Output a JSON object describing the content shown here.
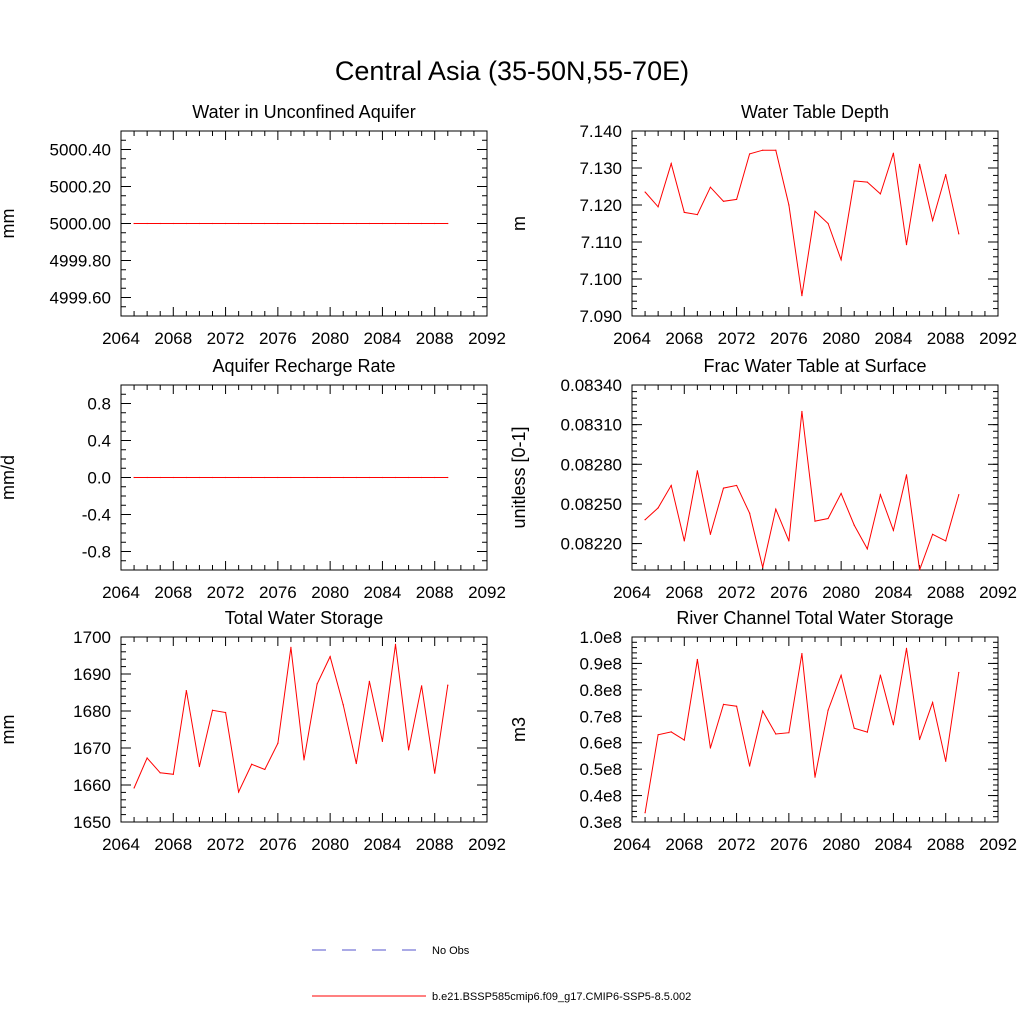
{
  "title": "Central Asia (35-50N,55-70E)",
  "chart_data": [
    {
      "type": "line",
      "title": "Water in Unconfined Aquifer",
      "ylabel": "mm",
      "xlim": [
        2064,
        2092
      ],
      "ylim": [
        4999.5,
        5000.5
      ],
      "x_ticks": [
        "2064",
        "2068",
        "2072",
        "2076",
        "2080",
        "2084",
        "2088",
        "2092"
      ],
      "y_ticks": [
        {
          "v": 4999.6,
          "label": "4999.60"
        },
        {
          "v": 4999.8,
          "label": "4999.80"
        },
        {
          "v": 5000.0,
          "label": "5000.00"
        },
        {
          "v": 5000.2,
          "label": "5000.20"
        },
        {
          "v": 5000.4,
          "label": "5000.40"
        }
      ],
      "y_minor_step": 0.05,
      "x": [
        2065,
        2066,
        2067,
        2068,
        2069,
        2070,
        2071,
        2072,
        2073,
        2074,
        2075,
        2076,
        2077,
        2078,
        2079,
        2080,
        2081,
        2082,
        2083,
        2084,
        2085,
        2086,
        2087,
        2088,
        2089
      ],
      "series": [
        {
          "color": "#ff0000",
          "values": [
            5000,
            5000,
            5000,
            5000,
            5000,
            5000,
            5000,
            5000,
            5000,
            5000,
            5000,
            5000,
            5000,
            5000,
            5000,
            5000,
            5000,
            5000,
            5000,
            5000,
            5000,
            5000,
            5000,
            5000,
            5000
          ]
        }
      ]
    },
    {
      "type": "line",
      "title": "Water Table Depth",
      "ylabel": "m",
      "xlim": [
        2064,
        2092
      ],
      "ylim": [
        7.09,
        7.14
      ],
      "x_ticks": [
        "2064",
        "2068",
        "2072",
        "2076",
        "2080",
        "2084",
        "2088",
        "2092"
      ],
      "y_ticks": [
        {
          "v": 7.09,
          "label": "7.090"
        },
        {
          "v": 7.1,
          "label": "7.100"
        },
        {
          "v": 7.11,
          "label": "7.110"
        },
        {
          "v": 7.12,
          "label": "7.120"
        },
        {
          "v": 7.13,
          "label": "7.130"
        },
        {
          "v": 7.14,
          "label": "7.140"
        }
      ],
      "y_minor_step": 0.002,
      "x": [
        2065,
        2066,
        2067,
        2068,
        2069,
        2070,
        2071,
        2072,
        2073,
        2074,
        2075,
        2076,
        2077,
        2078,
        2079,
        2080,
        2081,
        2082,
        2083,
        2084,
        2085,
        2086,
        2087,
        2088,
        2089
      ],
      "series": [
        {
          "color": "#ff0000",
          "values": [
            7.1235,
            7.1195,
            7.1312,
            7.118,
            7.1174,
            7.1248,
            7.121,
            7.1215,
            7.1338,
            7.1348,
            7.1348,
            7.12,
            7.0955,
            7.1183,
            7.115,
            7.1052,
            7.1265,
            7.1262,
            7.123,
            7.134,
            7.1093,
            7.131,
            7.1158,
            7.1282,
            7.1122
          ]
        }
      ]
    },
    {
      "type": "line",
      "title": "Aquifer Recharge Rate",
      "ylabel": "mm/d",
      "xlim": [
        2064,
        2092
      ],
      "ylim": [
        -1.0,
        1.0
      ],
      "x_ticks": [
        "2064",
        "2068",
        "2072",
        "2076",
        "2080",
        "2084",
        "2088",
        "2092"
      ],
      "y_ticks": [
        {
          "v": -0.8,
          "label": "-0.8"
        },
        {
          "v": -0.4,
          "label": "-0.4"
        },
        {
          "v": 0.0,
          "label": "0.0"
        },
        {
          "v": 0.4,
          "label": "0.4"
        },
        {
          "v": 0.8,
          "label": "0.8"
        }
      ],
      "y_minor_step": 0.1,
      "x": [
        2065,
        2066,
        2067,
        2068,
        2069,
        2070,
        2071,
        2072,
        2073,
        2074,
        2075,
        2076,
        2077,
        2078,
        2079,
        2080,
        2081,
        2082,
        2083,
        2084,
        2085,
        2086,
        2087,
        2088,
        2089
      ],
      "series": [
        {
          "color": "#ff0000",
          "values": [
            0,
            0,
            0,
            0,
            0,
            0,
            0,
            0,
            0,
            0,
            0,
            0,
            0,
            0,
            0,
            0,
            0,
            0,
            0,
            0,
            0,
            0,
            0,
            0,
            0
          ]
        }
      ]
    },
    {
      "type": "line",
      "title": "Frac Water Table at Surface",
      "ylabel": "unitless [0-1]",
      "xlim": [
        2064,
        2092
      ],
      "ylim": [
        0.082,
        0.0834
      ],
      "x_ticks": [
        "2064",
        "2068",
        "2072",
        "2076",
        "2080",
        "2084",
        "2088",
        "2092"
      ],
      "y_ticks": [
        {
          "v": 0.0822,
          "label": "0.08220"
        },
        {
          "v": 0.0825,
          "label": "0.08250"
        },
        {
          "v": 0.0828,
          "label": "0.08280"
        },
        {
          "v": 0.0831,
          "label": "0.08310"
        },
        {
          "v": 0.0834,
          "label": "0.08340"
        }
      ],
      "y_minor_step": 5e-05,
      "x": [
        2065,
        2066,
        2067,
        2068,
        2069,
        2070,
        2071,
        2072,
        2073,
        2074,
        2075,
        2076,
        2077,
        2078,
        2079,
        2080,
        2081,
        2082,
        2083,
        2084,
        2085,
        2086,
        2087,
        2088,
        2089
      ],
      "series": [
        {
          "color": "#ff0000",
          "values": [
            0.08238,
            0.08247,
            0.08264,
            0.08222,
            0.08275,
            0.08227,
            0.08262,
            0.08264,
            0.08243,
            0.08202,
            0.08246,
            0.08222,
            0.0832,
            0.08237,
            0.08239,
            0.08258,
            0.08234,
            0.08216,
            0.08257,
            0.0823,
            0.08272,
            0.082,
            0.08227,
            0.08222,
            0.08257
          ]
        }
      ]
    },
    {
      "type": "line",
      "title": "Total Water Storage",
      "ylabel": "mm",
      "xlim": [
        2064,
        2092
      ],
      "ylim": [
        1650,
        1700
      ],
      "x_ticks": [
        "2064",
        "2068",
        "2072",
        "2076",
        "2080",
        "2084",
        "2088",
        "2092"
      ],
      "y_ticks": [
        {
          "v": 1650,
          "label": "1650"
        },
        {
          "v": 1660,
          "label": "1660"
        },
        {
          "v": 1670,
          "label": "1670"
        },
        {
          "v": 1680,
          "label": "1680"
        },
        {
          "v": 1690,
          "label": "1690"
        },
        {
          "v": 1700,
          "label": "1700"
        }
      ],
      "y_minor_step": 2,
      "x": [
        2065,
        2066,
        2067,
        2068,
        2069,
        2070,
        2071,
        2072,
        2073,
        2074,
        2075,
        2076,
        2077,
        2078,
        2079,
        2080,
        2081,
        2082,
        2083,
        2084,
        2085,
        2086,
        2087,
        2088,
        2089
      ],
      "series": [
        {
          "color": "#ff0000",
          "values": [
            1659.2,
            1667.3,
            1663.3,
            1662.9,
            1685.5,
            1665.0,
            1680.2,
            1679.6,
            1658.1,
            1665.6,
            1664.2,
            1671.3,
            1697.2,
            1666.8,
            1687.3,
            1694.7,
            1681.7,
            1665.8,
            1688.0,
            1671.8,
            1698.0,
            1669.5,
            1686.8,
            1663.2,
            1687.0
          ]
        }
      ]
    },
    {
      "type": "line",
      "title": "River Channel Total Water Storage",
      "ylabel": "m3",
      "xlim": [
        2064,
        2092
      ],
      "ylim": [
        0.3,
        1.0
      ],
      "y_unit": "1e8",
      "x_ticks": [
        "2064",
        "2068",
        "2072",
        "2076",
        "2080",
        "2084",
        "2088",
        "2092"
      ],
      "y_ticks": [
        {
          "v": 0.3,
          "label": "0.3e8"
        },
        {
          "v": 0.4,
          "label": "0.4e8"
        },
        {
          "v": 0.5,
          "label": "0.5e8"
        },
        {
          "v": 0.6,
          "label": "0.6e8"
        },
        {
          "v": 0.7,
          "label": "0.7e8"
        },
        {
          "v": 0.8,
          "label": "0.8e8"
        },
        {
          "v": 0.9,
          "label": "0.9e8"
        },
        {
          "v": 1.0,
          "label": "1.0e8"
        }
      ],
      "y_minor_step": 0.02,
      "x": [
        2065,
        2066,
        2067,
        2068,
        2069,
        2070,
        2071,
        2072,
        2073,
        2074,
        2075,
        2076,
        2077,
        2078,
        2079,
        2080,
        2081,
        2082,
        2083,
        2084,
        2085,
        2086,
        2087,
        2088,
        2089
      ],
      "series": [
        {
          "color": "#ff0000",
          "values": [
            0.335,
            0.63,
            0.641,
            0.61,
            0.915,
            0.58,
            0.745,
            0.738,
            0.512,
            0.72,
            0.633,
            0.638,
            0.937,
            0.47,
            0.723,
            0.855,
            0.655,
            0.64,
            0.856,
            0.668,
            0.957,
            0.612,
            0.752,
            0.53,
            0.866
          ]
        }
      ]
    }
  ],
  "legend": [
    {
      "label": "No Obs",
      "color": "#5555cc",
      "style": "dashed"
    },
    {
      "label": "b.e21.BSSP585cmip6.f09_g17.CMIP6-SSP5-8.5.002",
      "color": "#ff0000",
      "style": "solid"
    }
  ]
}
